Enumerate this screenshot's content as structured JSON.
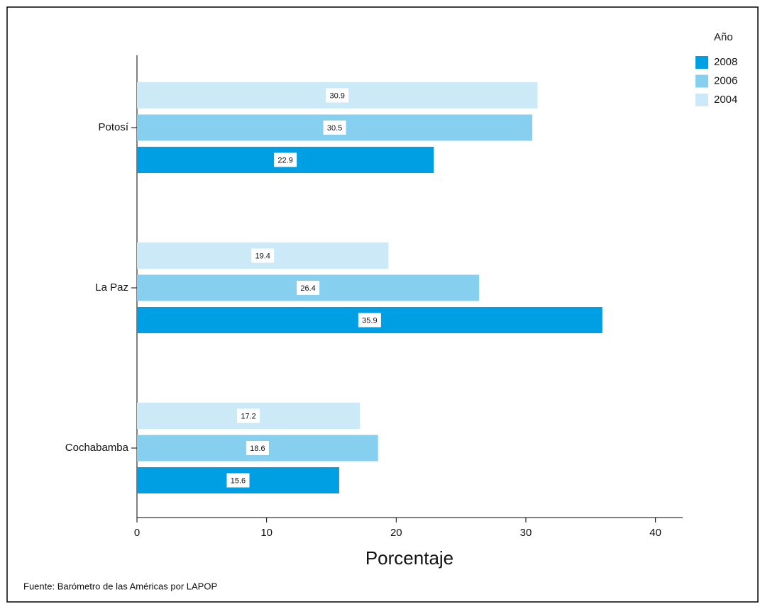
{
  "chart_data": {
    "type": "hbar",
    "categories": [
      "Potosí",
      "La Paz",
      "Cochabamba"
    ],
    "series": [
      {
        "name": "2008",
        "color": "#009fe3",
        "values": [
          22.9,
          35.9,
          15.6
        ]
      },
      {
        "name": "2006",
        "color": "#87cfee",
        "values": [
          30.5,
          26.4,
          18.6
        ]
      },
      {
        "name": "2004",
        "color": "#cce9f8",
        "values": [
          30.9,
          19.4,
          17.2
        ]
      }
    ],
    "xlim": [
      0,
      42.1
    ],
    "xticks": [
      0,
      10,
      20,
      30,
      40
    ],
    "xlabel": "Porcentaje",
    "legend_title": "Año",
    "legend": "top-right",
    "source": "Fuente: Barómetro de las Américas por LAPOP"
  }
}
